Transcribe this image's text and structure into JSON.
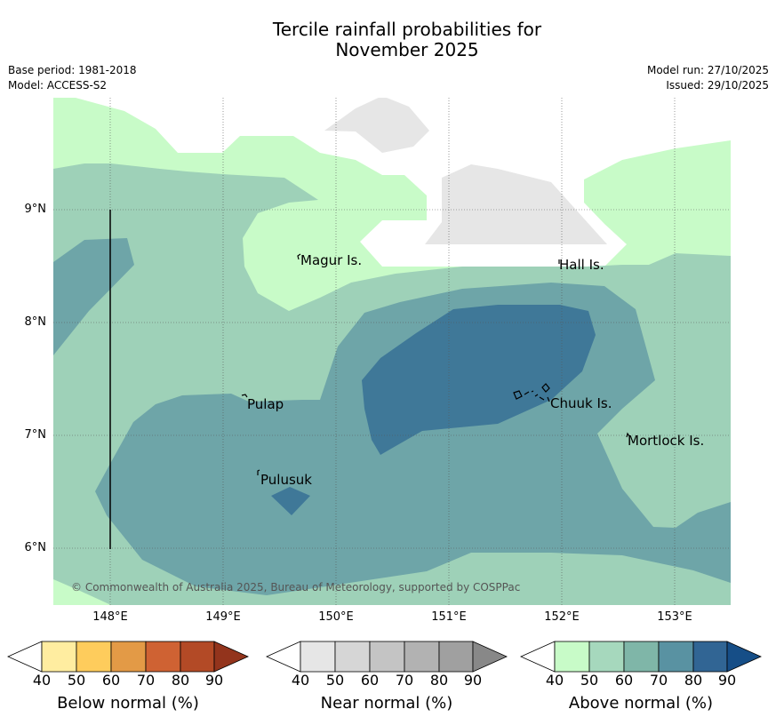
{
  "title_line1": "Tercile rainfall probabilities for",
  "title_line2": "November 2025",
  "meta": {
    "base_period": "Base period: 1981-2018",
    "model": "Model: ACCESS-S2",
    "model_run": "Model run: 27/10/2025",
    "issued": "Issued: 29/10/2025"
  },
  "axes": {
    "lat_labels": [
      "9°N",
      "8°N",
      "7°N",
      "6°N"
    ],
    "lon_labels": [
      "148°E",
      "149°E",
      "150°E",
      "151°E",
      "152°E",
      "153°E"
    ]
  },
  "places": [
    "Magur Is.",
    "Hall Is.",
    "Pulap",
    "Chuuk Is.",
    "Mortlock Is.",
    "Pulusuk"
  ],
  "copyright": "© Commonwealth of Australia 2025, Bureau of Meteorology, supported by COSPPac",
  "legend": {
    "below": {
      "title": "Below normal (%)",
      "ticks": [
        "40",
        "50",
        "60",
        "70",
        "80",
        "90"
      ],
      "colors": [
        "#ffffff",
        "#ffeda0",
        "#fecc5c",
        "#e39a46",
        "#cf6233",
        "#b34a26",
        "#93341c"
      ]
    },
    "near": {
      "title": "Near normal (%)",
      "ticks": [
        "40",
        "50",
        "60",
        "70",
        "80",
        "90"
      ],
      "colors": [
        "#ffffff",
        "#e6e6e6",
        "#d6d6d6",
        "#c4c4c4",
        "#b2b2b2",
        "#a0a0a0",
        "#888888"
      ]
    },
    "above": {
      "title": "Above normal (%)",
      "ticks": [
        "40",
        "50",
        "60",
        "70",
        "80",
        "90"
      ],
      "colors": [
        "#ffffff",
        "#c8fbc8",
        "#a6d8bd",
        "#7fb6a8",
        "#5992a2",
        "#316594",
        "#164e87"
      ]
    }
  }
}
